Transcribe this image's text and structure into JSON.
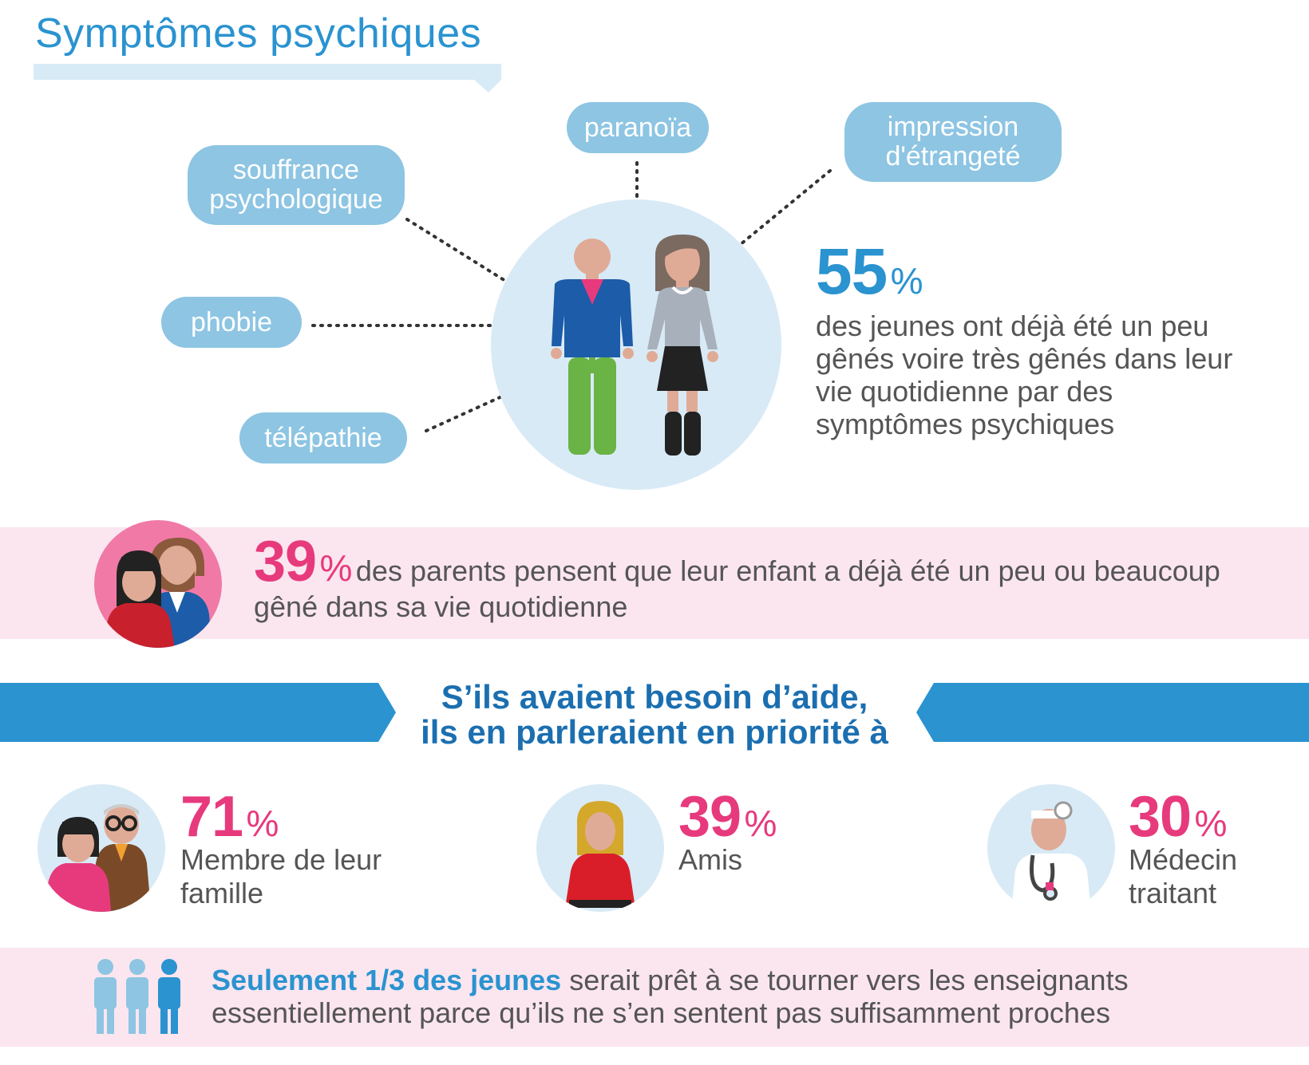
{
  "title": "Symptômes psychiques",
  "symptoms": {
    "souffrance": "souffrance psychologique",
    "paranoia": "paranoïa",
    "etrangete": "impression d'étrangeté",
    "phobie": "phobie",
    "telepathie": "télépathie"
  },
  "stat_main": {
    "value": "55",
    "unit": "%",
    "text": "des jeunes ont déjà été un peu gênés  voire très gênés dans leur vie quotidienne par des symptômes psychiques"
  },
  "stat_parents": {
    "value": "39",
    "unit": "%",
    "text": "des parents pensent que leur enfant a déjà été un peu ou beaucoup gêné dans sa vie quotidienne"
  },
  "banner": {
    "line1": "S’ils avaient besoin d’aide,",
    "line2": "ils en parleraient en priorité à"
  },
  "help": [
    {
      "value": "71",
      "unit": "%",
      "label": "Membre de leur famille"
    },
    {
      "value": "39",
      "unit": "%",
      "label": "Amis"
    },
    {
      "value": "30",
      "unit": "%",
      "label": "Médecin traitant"
    }
  ],
  "bottom": {
    "bold": "Seulement 1/3 des jeunes",
    "rest": "serait prêt à se tourner vers les enseignants essentiellement parce qu’ils ne s’en sentent pas suffisamment proches"
  },
  "colors": {
    "blue": "#2a93d0",
    "dark_blue": "#1b6fb0",
    "pink": "#e73a7d",
    "pill": "#8dc5e3",
    "band": "#fbe6ef"
  }
}
